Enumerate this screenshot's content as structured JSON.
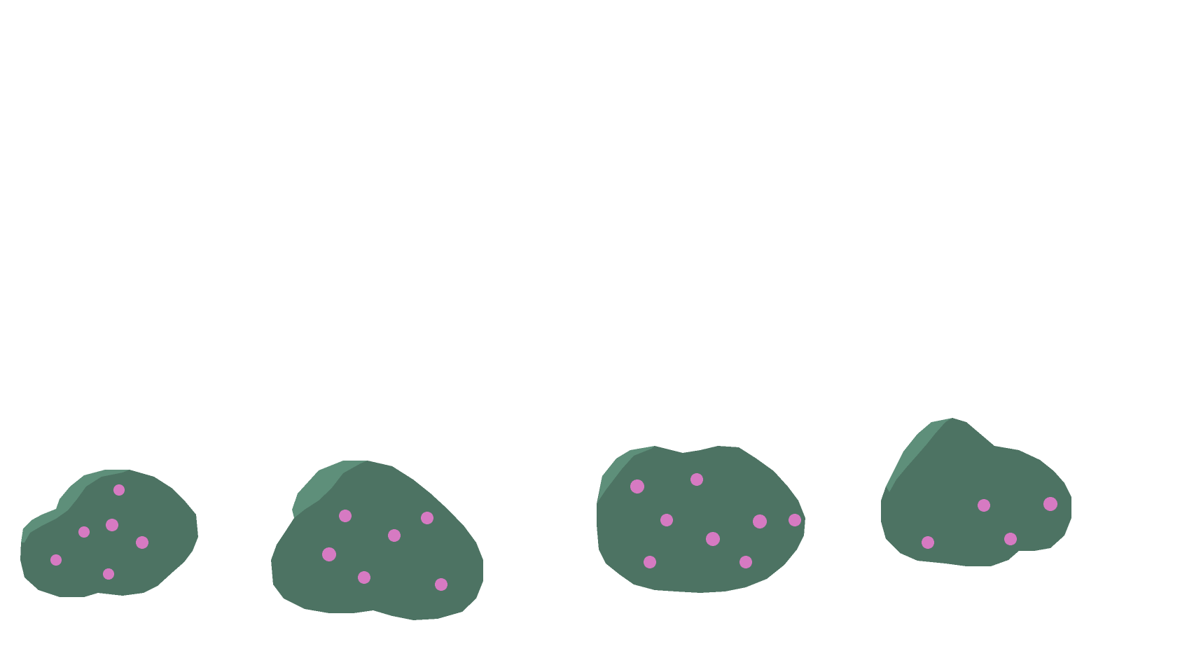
{
  "scene": {
    "background_color": "#ffffff",
    "sprite_sheet": "flowering-bush-variants"
  },
  "palette": {
    "leaf": "#4d7363",
    "leaf_highlight": "#5e8f7a",
    "flower": "#d67ac2"
  },
  "bushes": [
    {
      "id": "bush-1",
      "flower_count": 6
    },
    {
      "id": "bush-2",
      "flower_count": 6
    },
    {
      "id": "bush-3",
      "flower_count": 8
    },
    {
      "id": "bush-4",
      "flower_count": 4
    }
  ]
}
